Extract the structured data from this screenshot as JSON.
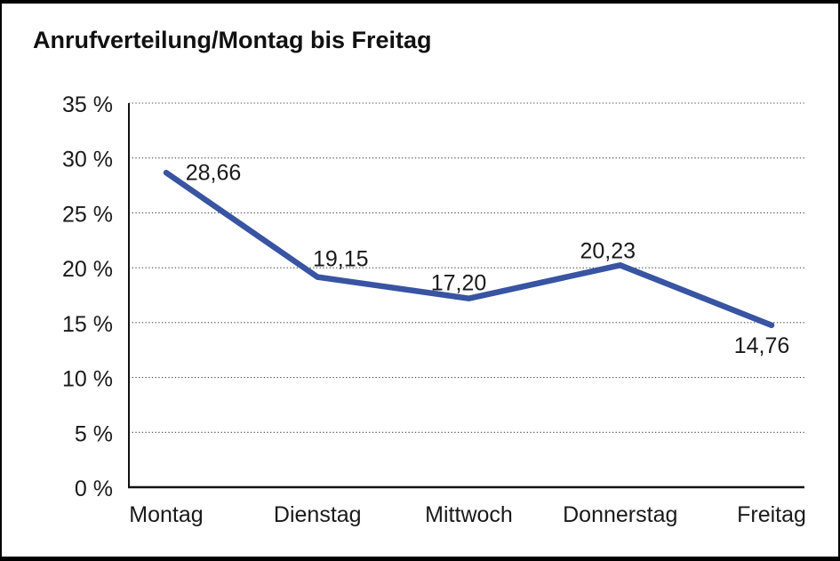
{
  "page": {
    "title": "Anrufverteilung/Montag bis Freitag"
  },
  "chart_data": {
    "type": "line",
    "title": "Anrufverteilung/Montag bis Freitag",
    "categories": [
      "Montag",
      "Dienstag",
      "Mittwoch",
      "Donnerstag",
      "Freitag"
    ],
    "series": [
      {
        "name": "Anrufverteilung",
        "values": [
          28.66,
          19.15,
          17.2,
          20.23,
          14.76
        ],
        "value_labels": [
          "28,66",
          "19,15",
          "17,20",
          "20,23",
          "14,76"
        ]
      }
    ],
    "xlabel": "",
    "ylabel": "",
    "ylim": [
      0,
      35
    ],
    "ytick_step": 5,
    "ytick_labels": [
      "0 %",
      "5 %",
      "10 %",
      "15 %",
      "20 %",
      "25 %",
      "30 %",
      "35 %"
    ],
    "grid": "horizontal-dotted",
    "legend": "none",
    "unit": "%",
    "decimal_separator": ","
  },
  "colors": {
    "line": "#3854A2",
    "axis": "#111111",
    "grid": "#4a4a4a",
    "text": "#1a1a1a",
    "background": "#ffffff",
    "frame_border": "#000000"
  }
}
